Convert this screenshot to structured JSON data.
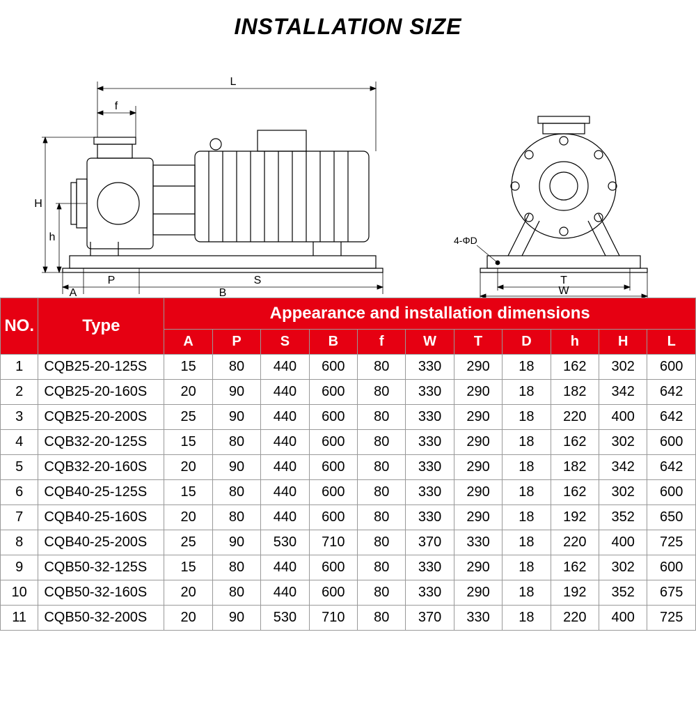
{
  "title": "INSTALLATION SIZE",
  "header": {
    "no": "NO.",
    "type": "Type",
    "group": "Appearance and installation dimensions",
    "cols": [
      "A",
      "P",
      "S",
      "B",
      "f",
      "W",
      "T",
      "D",
      "h",
      "H",
      "L"
    ]
  },
  "diagram_labels": {
    "L": "L",
    "f": "f",
    "H": "H",
    "h": "h",
    "A": "A",
    "P": "P",
    "S": "S",
    "B": "B",
    "D": "4-ΦD",
    "T": "T",
    "W": "W"
  },
  "rows": [
    {
      "no": "1",
      "type": "CQB25-20-125S",
      "v": [
        "15",
        "80",
        "440",
        "600",
        "80",
        "330",
        "290",
        "18",
        "162",
        "302",
        "600"
      ]
    },
    {
      "no": "2",
      "type": "CQB25-20-160S",
      "v": [
        "20",
        "90",
        "440",
        "600",
        "80",
        "330",
        "290",
        "18",
        "182",
        "342",
        "642"
      ]
    },
    {
      "no": "3",
      "type": "CQB25-20-200S",
      "v": [
        "25",
        "90",
        "440",
        "600",
        "80",
        "330",
        "290",
        "18",
        "220",
        "400",
        "642"
      ]
    },
    {
      "no": "4",
      "type": "CQB32-20-125S",
      "v": [
        "15",
        "80",
        "440",
        "600",
        "80",
        "330",
        "290",
        "18",
        "162",
        "302",
        "600"
      ]
    },
    {
      "no": "5",
      "type": "CQB32-20-160S",
      "v": [
        "20",
        "90",
        "440",
        "600",
        "80",
        "330",
        "290",
        "18",
        "182",
        "342",
        "642"
      ]
    },
    {
      "no": "6",
      "type": "CQB40-25-125S",
      "v": [
        "15",
        "80",
        "440",
        "600",
        "80",
        "330",
        "290",
        "18",
        "162",
        "302",
        "600"
      ]
    },
    {
      "no": "7",
      "type": "CQB40-25-160S",
      "v": [
        "20",
        "80",
        "440",
        "600",
        "80",
        "330",
        "290",
        "18",
        "192",
        "352",
        "650"
      ]
    },
    {
      "no": "8",
      "type": "CQB40-25-200S",
      "v": [
        "25",
        "90",
        "530",
        "710",
        "80",
        "370",
        "330",
        "18",
        "220",
        "400",
        "725"
      ]
    },
    {
      "no": "9",
      "type": "CQB50-32-125S",
      "v": [
        "15",
        "80",
        "440",
        "600",
        "80",
        "330",
        "290",
        "18",
        "162",
        "302",
        "600"
      ]
    },
    {
      "no": "10",
      "type": "CQB50-32-160S",
      "v": [
        "20",
        "80",
        "440",
        "600",
        "80",
        "330",
        "290",
        "18",
        "192",
        "352",
        "675"
      ]
    },
    {
      "no": "11",
      "type": "CQB50-32-200S",
      "v": [
        "20",
        "90",
        "530",
        "710",
        "80",
        "370",
        "330",
        "18",
        "220",
        "400",
        "725"
      ]
    }
  ],
  "styling": {
    "header_bg": "#e60012",
    "header_color": "#ffffff",
    "border_color": "#999999",
    "title_fontsize": 32,
    "header_fontsize": 24,
    "subheader_fontsize": 20,
    "cell_fontsize": 20,
    "diagram_stroke": "#000000",
    "diagram_stroke_width": 1.2
  }
}
